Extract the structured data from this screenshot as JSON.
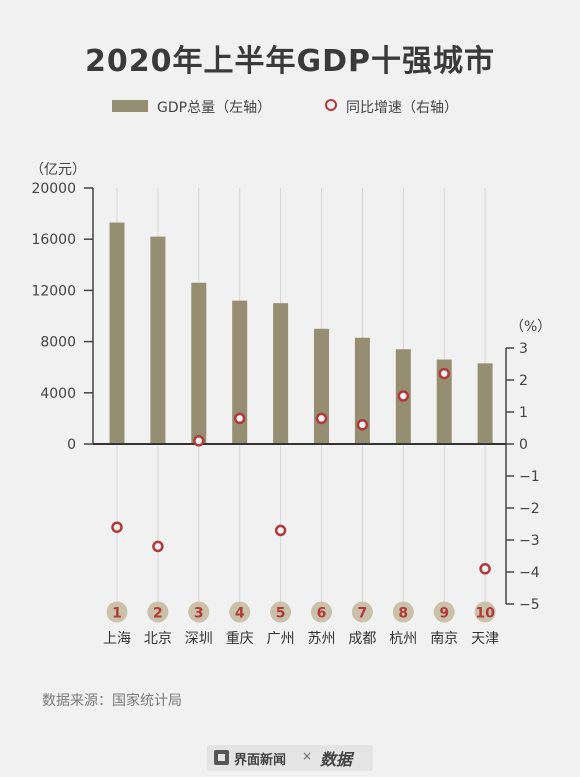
{
  "title": "2020年上半年GDP十强城市",
  "legend": {
    "gdp_label": "GDP总量（左轴）",
    "growth_label": "同比增速（右轴）"
  },
  "colors": {
    "bar": "#968e72",
    "dot": "#b03a3a",
    "badge": "#c9c1a9",
    "badge_text": "#b03a3a",
    "grid": "#d6d6d6"
  },
  "source": "数据来源：国家统计局",
  "footer": {
    "brand": "界面新闻",
    "separator": "×",
    "brand2": "数据"
  },
  "chart_data": {
    "type": "bar",
    "categories": [
      "上海",
      "北京",
      "深圳",
      "重庆",
      "广州",
      "苏州",
      "成都",
      "杭州",
      "南京",
      "天津"
    ],
    "ranks": [
      "1",
      "2",
      "3",
      "4",
      "5",
      "6",
      "7",
      "8",
      "9",
      "10"
    ],
    "series": [
      {
        "name": "GDP总量",
        "axis": "left",
        "type": "bar",
        "values": [
          17300,
          16200,
          12600,
          11200,
          11000,
          9000,
          8300,
          7400,
          6600,
          6300
        ]
      },
      {
        "name": "同比增速",
        "axis": "right",
        "type": "scatter",
        "values": [
          -2.6,
          -3.2,
          0.1,
          0.8,
          -2.7,
          0.8,
          0.6,
          1.5,
          2.2,
          -3.9
        ]
      }
    ],
    "left_axis": {
      "unit": "（亿元）",
      "ticks": [
        0,
        4000,
        8000,
        12000,
        16000,
        20000
      ],
      "range": [
        0,
        20000
      ]
    },
    "right_axis": {
      "unit": "（%）",
      "ticks": [
        3,
        2,
        1,
        0,
        -1,
        -2,
        -3,
        -4,
        -5
      ],
      "tick_labels": [
        "3",
        "2",
        "1",
        "0",
        "−1",
        "−2",
        "−3",
        "−4",
        "−5"
      ],
      "range": [
        -5,
        3
      ]
    },
    "grid": true
  }
}
